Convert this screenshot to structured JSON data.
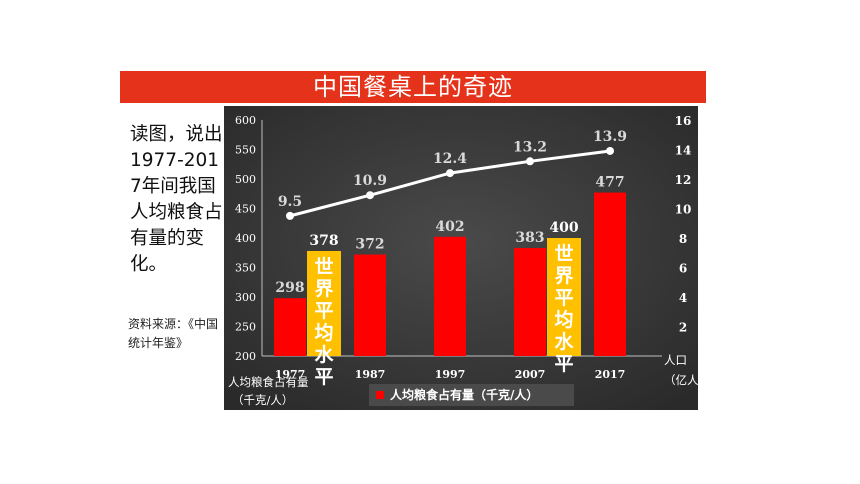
{
  "slide": {
    "title": "中国餐桌上的奇迹",
    "question": "读图，说出1977-2017年间我国人均粮食占有量的变化。",
    "source": "资料来源：《中国统计年鉴》"
  },
  "colors": {
    "title_bar": "#e5321b",
    "bar_red": "#ff0000",
    "bar_world": "#ffc000",
    "world_text": "#ffffff",
    "line": "#ffffff",
    "panel_bg": "#3d3d3d"
  },
  "chart_data": {
    "type": "bar+line",
    "categories": [
      "1977",
      "1987",
      "1997",
      "2007",
      "2017"
    ],
    "series": [
      {
        "name": "人均粮食占有量（千克/人）",
        "type": "bar",
        "axis": "left",
        "values": [
          298,
          372,
          402,
          383,
          477
        ]
      },
      {
        "name": "",
        "type": "line",
        "axis": "right",
        "values": [
          9.5,
          10.9,
          12.4,
          13.2,
          13.9
        ]
      }
    ],
    "world_level_bars": [
      {
        "after_category": "1977",
        "value": 378,
        "label": "世界平均水平"
      },
      {
        "after_category": "2007",
        "value": 400,
        "label": "世界平均水平"
      }
    ],
    "left_axis": {
      "min": 200,
      "max": 600,
      "ticks": [
        200,
        250,
        300,
        350,
        400,
        450,
        500,
        550,
        600
      ]
    },
    "right_axis": {
      "min": 0,
      "max": 16,
      "ticks": [
        2,
        4,
        6,
        8,
        10,
        12,
        14,
        16
      ]
    },
    "xlabel_left": "人均粮食占有量（千克/人）",
    "xlabel_right": "人口（亿人）",
    "legend": {
      "position": "bottom-center",
      "label": "人均粮食占有量（千克/人）"
    },
    "grid": false
  }
}
